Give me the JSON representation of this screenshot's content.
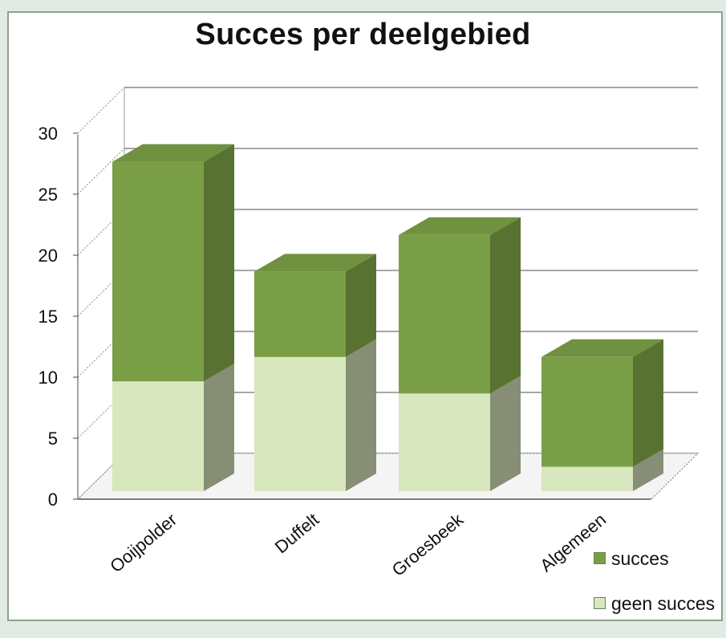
{
  "chart_data": {
    "type": "bar",
    "stacked": true,
    "three_d": true,
    "title": "Succes per deelgebied",
    "categories": [
      "Ooijpolder",
      "Duffelt",
      "Groesbeek",
      "Algemeen"
    ],
    "series": [
      {
        "name": "geen succes",
        "values": [
          9,
          11,
          8,
          2
        ],
        "color": "#d8e7bd"
      },
      {
        "name": "succes",
        "values": [
          18,
          7,
          13,
          9
        ],
        "color": "#7a9e45"
      }
    ],
    "ylim": [
      0,
      30
    ],
    "yticks": [
      "0",
      "5",
      "10",
      "15",
      "20",
      "25",
      "30"
    ],
    "grid": true,
    "legend_position": "bottom-right"
  }
}
